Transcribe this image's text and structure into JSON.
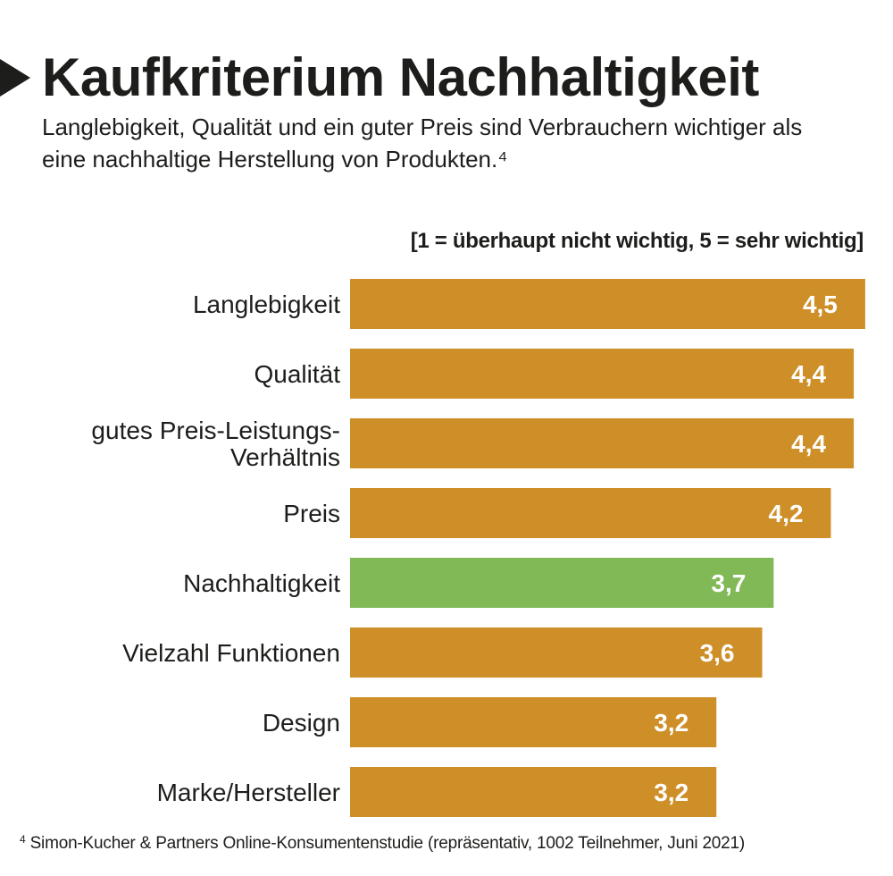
{
  "header": {
    "title": "Kaufkriterium Nachhaltigkeit",
    "subtitle": "Langlebigkeit, Qualität und ein guter Preis sind Verbrauchern wichtiger als eine nachhaltige Herstellung von Produkten.⁴",
    "marker_icon": "triangle-right-icon"
  },
  "colors": {
    "default_bar": "#cf8f28",
    "highlight_bar": "#81b957",
    "value_label": "#ffffff",
    "text": "#1d1d1b"
  },
  "chart_data": {
    "type": "bar",
    "orientation": "horizontal",
    "title": "Kaufkriterium Nachhaltigkeit",
    "subtitle": "Langlebigkeit, Qualität und ein guter Preis sind Verbrauchern wichtiger als eine nachhaltige Herstellung von Produkten.⁴",
    "scale_note": "[1 = überhaupt nicht wichtig, 5 = sehr wichtig]",
    "xlabel": "",
    "ylabel": "",
    "xlim": [
      0,
      5
    ],
    "grid": false,
    "legend": "none",
    "categories": [
      [
        "Langlebigkeit"
      ],
      [
        "Qualität"
      ],
      [
        "gutes Preis-Leistungs-",
        "Verhältnis"
      ],
      [
        "Preis"
      ],
      [
        "Nachhaltigkeit"
      ],
      [
        "Vielzahl Funktionen"
      ],
      [
        "Design"
      ],
      [
        "Marke/Hersteller"
      ]
    ],
    "values": [
      4.5,
      4.4,
      4.4,
      4.2,
      3.7,
      3.6,
      3.2,
      3.2
    ],
    "value_labels": [
      "4,5",
      "4,4",
      "4,4",
      "4,2",
      "3,7",
      "3,6",
      "3,2",
      "3,2"
    ],
    "highlight_index": 4
  },
  "footnote": {
    "marker": "4",
    "text": "Simon-Kucher & Partners Online-Konsumentenstudie (repräsentativ, 1002 Teilnehmer, Juni 2021)"
  }
}
